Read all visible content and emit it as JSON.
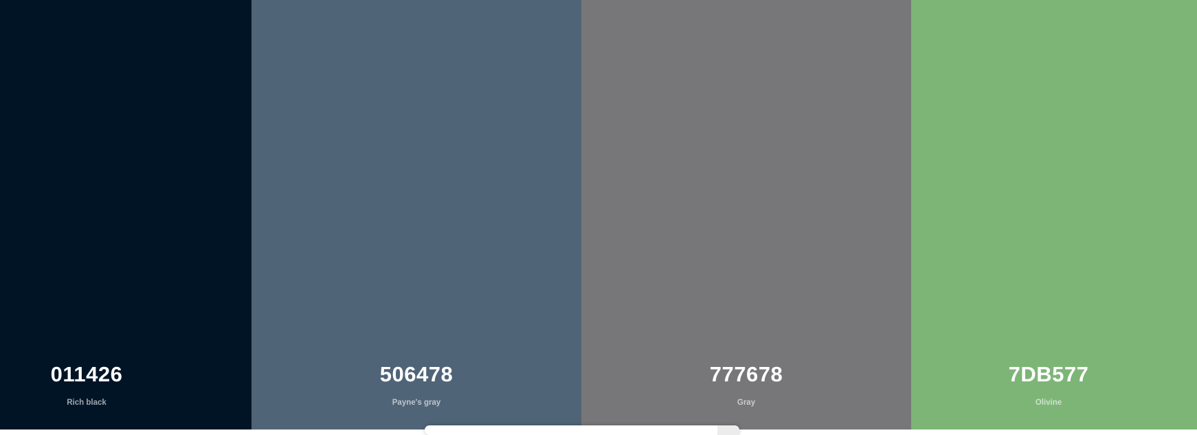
{
  "palette": {
    "swatches": [
      {
        "hex": "011426",
        "name": "Rich black",
        "color": "#011426"
      },
      {
        "hex": "506478",
        "name": "Payne's gray",
        "color": "#506478"
      },
      {
        "hex": "777678",
        "name": "Gray",
        "color": "#777678"
      },
      {
        "hex": "7DB577",
        "name": "Olivine",
        "color": "#7DB577"
      }
    ]
  }
}
